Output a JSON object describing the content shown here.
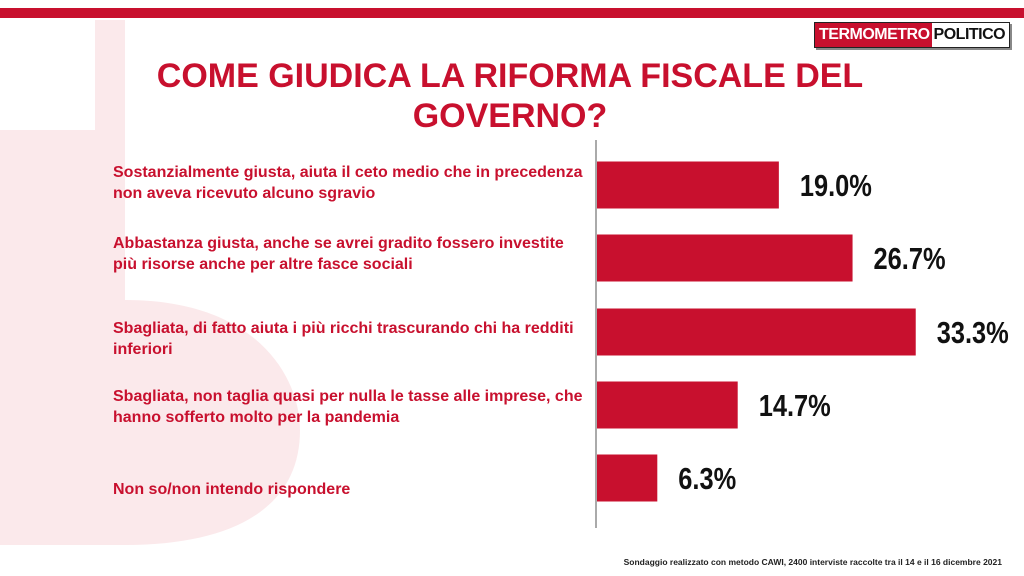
{
  "logo": {
    "part1": "TERMOMETRO",
    "part2": "POLITICO"
  },
  "chart_data": {
    "type": "bar",
    "orientation": "horizontal",
    "title": "COME GIUDICA LA RIFORMA FISCALE DEL GOVERNO?",
    "categories": [
      "Sostanzialmente giusta, aiuta il ceto medio che in precedenza non aveva ricevuto alcuno sgravio",
      "Abbastanza giusta, anche se avrei gradito fossero investite più risorse anche per altre fasce sociali",
      "Sbagliata, di fatto aiuta i più ricchi trascurando chi ha redditi inferiori",
      "Sbagliata, non taglia quasi per nulla le tasse alle imprese, che hanno sofferto molto per la pandemia",
      "Non so/non intendo rispondere"
    ],
    "values": [
      19.0,
      26.7,
      33.3,
      14.7,
      6.3
    ],
    "value_labels": [
      "19.0%",
      "26.7%",
      "33.3%",
      "14.7%",
      "6.3%"
    ],
    "xlim": [
      0,
      35
    ],
    "bar_color": "#c8102e",
    "grid": false
  },
  "footnote": "Sondaggio realizzato con metodo CAWI, 2400 interviste raccolte tra il 14 e il 16 dicembre 2021"
}
